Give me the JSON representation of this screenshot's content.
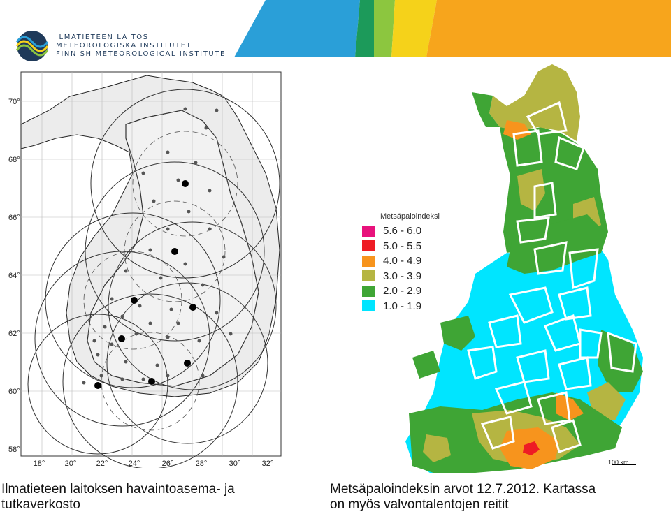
{
  "header": {
    "logo_lines": [
      "ILMATIETEEN LAITOS",
      "METEOROLOGISKA INSTITUTET",
      "FINNISH METEOROLOGICAL INSTITUTE"
    ],
    "band_colors": [
      "#2a9fd8",
      "#1c9a5a",
      "#8cc63f",
      "#f5d21a",
      "#f7a51c"
    ]
  },
  "left_map": {
    "lat_labels": [
      "70°",
      "68°",
      "66°",
      "64°",
      "62°",
      "60°",
      "58°"
    ],
    "lon_labels": [
      "18°",
      "20°",
      "22°",
      "24°",
      "26°",
      "28°",
      "30°",
      "32°"
    ],
    "caption_lines": [
      "Ilmatieteen laitoksen havaintoasema- ja",
      "tutkaverkosto"
    ]
  },
  "right_map": {
    "legend_title": "Metsäpaloindeksi",
    "legend": [
      {
        "label": "5.6 - 6.0",
        "color": "#e8127c"
      },
      {
        "label": "5.0 - 5.5",
        "color": "#ee1c24"
      },
      {
        "label": "4.0 - 4.9",
        "color": "#f7941d"
      },
      {
        "label": "3.0 - 3.9",
        "color": "#b5b542"
      },
      {
        "label": "2.0 - 2.9",
        "color": "#3fa535"
      },
      {
        "label": "1.0 - 1.9",
        "color": "#00e5ff"
      }
    ],
    "scale_label": "100 km",
    "caption_lines": [
      "Metsäpaloindeksin arvot 12.7.2012. Kartassa",
      "on myös valvontalentojen reitit"
    ]
  }
}
